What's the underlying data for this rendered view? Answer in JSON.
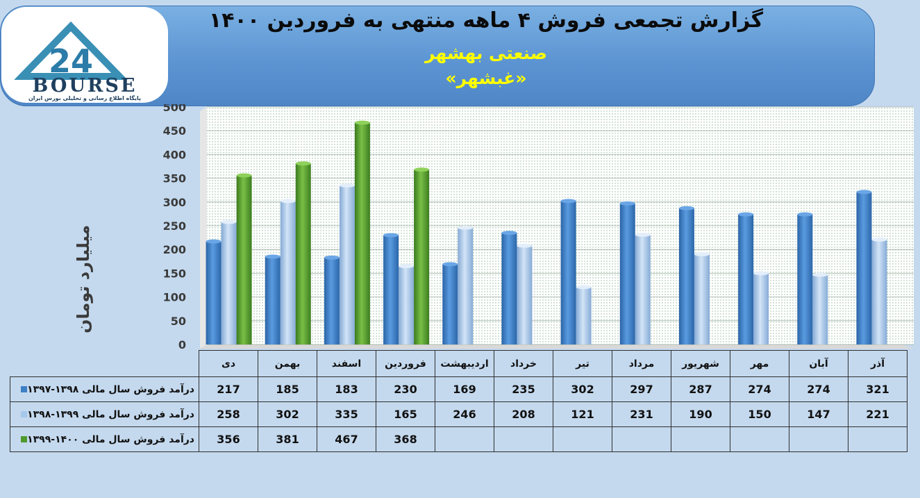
{
  "header": {
    "title": "گزارش تجمعی فروش ۴ ماهه منتهی به فروردین ۱۴۰۰",
    "subtitle": "صنعتی بهشهر",
    "symbol": "«غبشهر»"
  },
  "logo": {
    "number": "24",
    "word": "BOURSE",
    "tagline": "پایگاه اطلاع رسانی و تحلیلی بورس ایران"
  },
  "colors": {
    "series1": "#3e7fc6",
    "series2": "#a6c7ec",
    "series3": "#4f9a2c"
  },
  "chart_data": {
    "type": "bar",
    "ylabel": "میلیارد تومان",
    "ylim": [
      0,
      500
    ],
    "yticks": [
      0,
      50,
      100,
      150,
      200,
      250,
      300,
      350,
      400,
      450,
      500
    ],
    "grid": true,
    "categories": [
      "دی",
      "بهمن",
      "اسفند",
      "فروردین",
      "اردیبهشت",
      "خرداد",
      "تیر",
      "مرداد",
      "شهریور",
      "مهر",
      "آبان",
      "آذر"
    ],
    "series": [
      {
        "name": "درآمد فروش سال مالی ۱۳۹۸-۱۳۹۷",
        "values": [
          217,
          185,
          183,
          230,
          169,
          235,
          302,
          297,
          287,
          274,
          274,
          321
        ]
      },
      {
        "name": "درآمد فروش سال مالی ۱۳۹۹-۱۳۹۸",
        "values": [
          258,
          302,
          335,
          165,
          246,
          208,
          121,
          231,
          190,
          150,
          147,
          221
        ]
      },
      {
        "name": "درآمد فروش سال مالی ۱۴۰۰-۱۳۹۹",
        "values": [
          356,
          381,
          467,
          368,
          null,
          null,
          null,
          null,
          null,
          null,
          null,
          null
        ]
      }
    ]
  }
}
